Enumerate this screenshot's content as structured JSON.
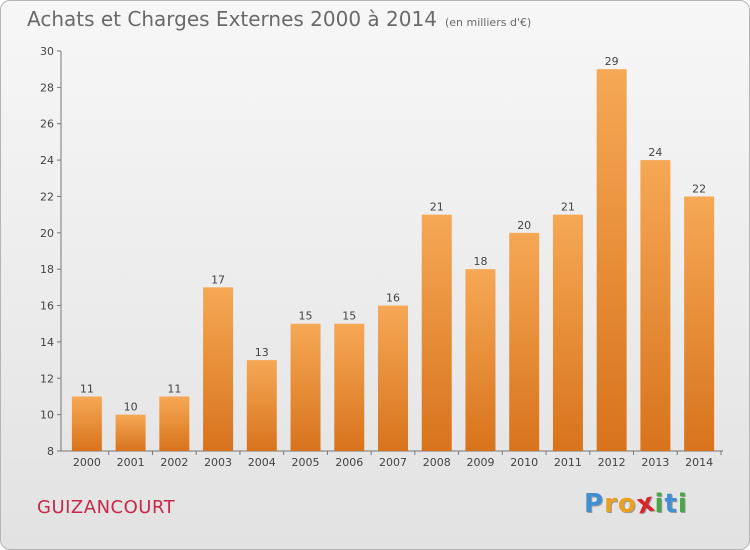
{
  "title": "Achats et Charges Externes 2000 à 2014",
  "subtitle": "(en milliers d'€)",
  "commune": "GUIZANCOURT",
  "logo": {
    "letters": [
      "P",
      "r",
      "o",
      "x",
      "i",
      "t",
      "i"
    ],
    "colors": [
      "#3f8fd2",
      "#e9a020",
      "#e9a020",
      "#d8262e",
      "#4aa548",
      "#3f8fd2",
      "#4aa548"
    ]
  },
  "colors": {
    "bar_top": "#f6a855",
    "bar_bottom": "#d8731c",
    "title": "#6a6a6a",
    "commune": "#c8284a"
  },
  "chart_data": {
    "type": "bar",
    "title": "Achats et Charges Externes 2000 à 2014",
    "subtitle": "(en milliers d'€)",
    "xlabel": "",
    "ylabel": "",
    "categories": [
      "2000",
      "2001",
      "2002",
      "2003",
      "2004",
      "2005",
      "2006",
      "2007",
      "2008",
      "2009",
      "2010",
      "2011",
      "2012",
      "2013",
      "2014"
    ],
    "values": [
      11,
      10,
      11,
      17,
      13,
      15,
      15,
      16,
      21,
      18,
      20,
      21,
      29,
      24,
      22
    ],
    "ylim": [
      8,
      30
    ],
    "yticks": [
      8,
      10,
      12,
      14,
      16,
      18,
      20,
      22,
      24,
      26,
      28,
      30
    ],
    "grid": false,
    "legend": "none"
  }
}
